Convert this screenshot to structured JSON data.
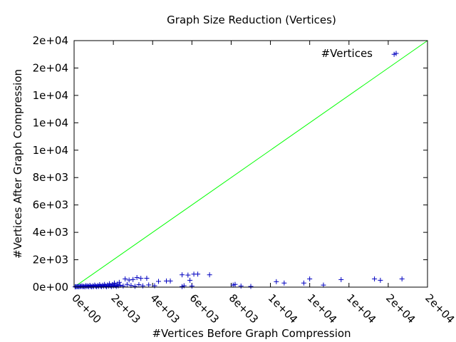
{
  "chart_data": {
    "type": "scatter",
    "title": "Graph Size Reduction (Vertices)",
    "xlabel": "#Vertices Before Graph Compression",
    "ylabel": "#Vertices After Graph Compression",
    "xlim": [
      0,
      18000
    ],
    "ylim": [
      0,
      18000
    ],
    "x_ticks": [
      "0e+00",
      "2e+03",
      "4e+03",
      "6e+03",
      "8e+03",
      "1e+04",
      "1e+04",
      "1e+04",
      "2e+04",
      "2e+04"
    ],
    "y_ticks": [
      "0e+00",
      "2e+03",
      "4e+03",
      "6e+03",
      "8e+03",
      "1e+04",
      "1e+04",
      "1e+04",
      "2e+04",
      "2e+04"
    ],
    "legend_position": "top-right",
    "colors": {
      "points": "#0000c0",
      "diagonal": "#00ff00"
    },
    "reference_line": {
      "from": [
        0,
        0
      ],
      "to": [
        18000,
        18000
      ]
    },
    "series": [
      {
        "name": "#Vertices",
        "marker": "plus",
        "points": [
          [
            16300,
            17000
          ],
          [
            50,
            20
          ],
          [
            100,
            40
          ],
          [
            150,
            30
          ],
          [
            200,
            60
          ],
          [
            250,
            20
          ],
          [
            300,
            80
          ],
          [
            350,
            40
          ],
          [
            400,
            100
          ],
          [
            450,
            30
          ],
          [
            500,
            70
          ],
          [
            550,
            20
          ],
          [
            600,
            110
          ],
          [
            650,
            50
          ],
          [
            700,
            90
          ],
          [
            750,
            30
          ],
          [
            800,
            130
          ],
          [
            850,
            60
          ],
          [
            900,
            20
          ],
          [
            950,
            100
          ],
          [
            1000,
            40
          ],
          [
            1050,
            150
          ],
          [
            1100,
            70
          ],
          [
            1150,
            30
          ],
          [
            1200,
            120
          ],
          [
            1250,
            50
          ],
          [
            1300,
            180
          ],
          [
            1350,
            80
          ],
          [
            1400,
            40
          ],
          [
            1450,
            140
          ],
          [
            1500,
            60
          ],
          [
            1550,
            200
          ],
          [
            1600,
            90
          ],
          [
            1650,
            30
          ],
          [
            1700,
            160
          ],
          [
            1750,
            70
          ],
          [
            1800,
            250
          ],
          [
            1850,
            110
          ],
          [
            1900,
            40
          ],
          [
            1950,
            190
          ],
          [
            2000,
            80
          ],
          [
            2050,
            300
          ],
          [
            2100,
            120
          ],
          [
            2150,
            50
          ],
          [
            2200,
            220
          ],
          [
            2250,
            90
          ],
          [
            2300,
            350
          ],
          [
            2350,
            140
          ],
          [
            2600,
            600
          ],
          [
            2800,
            520
          ],
          [
            3000,
            560
          ],
          [
            3400,
            640
          ],
          [
            3700,
            650
          ],
          [
            3200,
            700
          ],
          [
            2500,
            80
          ],
          [
            2700,
            200
          ],
          [
            2900,
            120
          ],
          [
            3100,
            60
          ],
          [
            3300,
            180
          ],
          [
            3500,
            90
          ],
          [
            3800,
            160
          ],
          [
            4100,
            100
          ],
          [
            4300,
            420
          ],
          [
            4700,
            450
          ],
          [
            4900,
            450
          ],
          [
            5500,
            900
          ],
          [
            5800,
            880
          ],
          [
            6100,
            950
          ],
          [
            6300,
            950
          ],
          [
            6900,
            900
          ],
          [
            5600,
            100
          ],
          [
            5900,
            500
          ],
          [
            6000,
            80
          ],
          [
            5500,
            40
          ],
          [
            8200,
            200
          ],
          [
            8100,
            150
          ],
          [
            8500,
            80
          ],
          [
            9000,
            50
          ],
          [
            10300,
            400
          ],
          [
            10700,
            300
          ],
          [
            11700,
            300
          ],
          [
            12000,
            600
          ],
          [
            12700,
            150
          ],
          [
            13600,
            550
          ],
          [
            15300,
            600
          ],
          [
            15600,
            500
          ],
          [
            16700,
            600
          ]
        ]
      }
    ]
  }
}
